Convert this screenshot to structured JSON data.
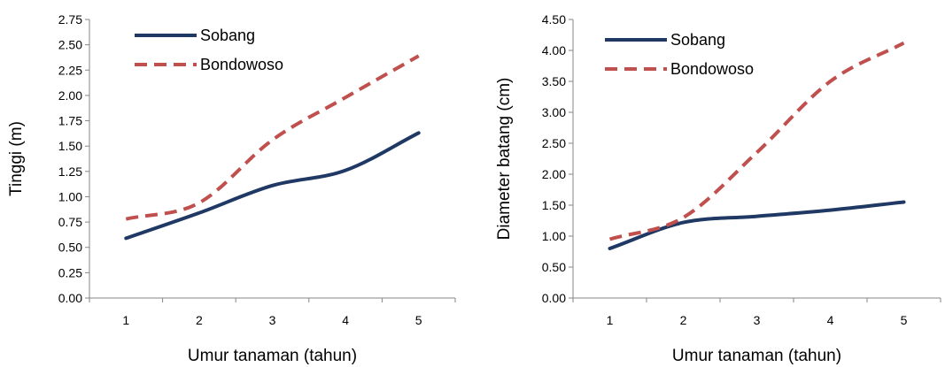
{
  "chart_data": [
    {
      "type": "line",
      "x": [
        1,
        2,
        3,
        4,
        5
      ],
      "xlabel": "Umur tanaman (tahun)",
      "ylabel": "Tinggi (m)",
      "ylim": [
        0,
        2.75
      ],
      "yticks": [
        "0.00",
        "0.25",
        "0.50",
        "0.75",
        "1.00",
        "1.25",
        "1.50",
        "1.75",
        "2.00",
        "2.25",
        "2.50",
        "2.75"
      ],
      "xticks": [
        "1",
        "2",
        "3",
        "4",
        "5"
      ],
      "grid": false,
      "legend": "top-left",
      "series": [
        {
          "name": "Sobang",
          "values": [
            0.59,
            0.84,
            1.11,
            1.26,
            1.63
          ],
          "color": "#1f3864",
          "dash": "solid"
        },
        {
          "name": "Bondowoso",
          "values": [
            0.78,
            0.94,
            1.56,
            1.98,
            2.39
          ],
          "color": "#c0504d",
          "dash": "dashed"
        }
      ]
    },
    {
      "type": "line",
      "x": [
        1,
        2,
        3,
        4,
        5
      ],
      "xlabel": "Umur tanaman (tahun)",
      "ylabel": "Diameter batang (cm)",
      "ylim": [
        0,
        4.5
      ],
      "yticks": [
        "0.00",
        "0.50",
        "1.00",
        "1.50",
        "2.00",
        "2.50",
        "3.00",
        "3.50",
        "4.00",
        "4.50"
      ],
      "xticks": [
        "1",
        "2",
        "3",
        "4",
        "5"
      ],
      "grid": false,
      "legend": "top-left",
      "series": [
        {
          "name": "Sobang",
          "values": [
            0.8,
            1.22,
            1.32,
            1.42,
            1.55
          ],
          "color": "#1f3864",
          "dash": "solid"
        },
        {
          "name": "Bondowoso",
          "values": [
            0.95,
            1.3,
            2.35,
            3.5,
            4.12
          ],
          "color": "#c0504d",
          "dash": "dashed"
        }
      ]
    }
  ]
}
